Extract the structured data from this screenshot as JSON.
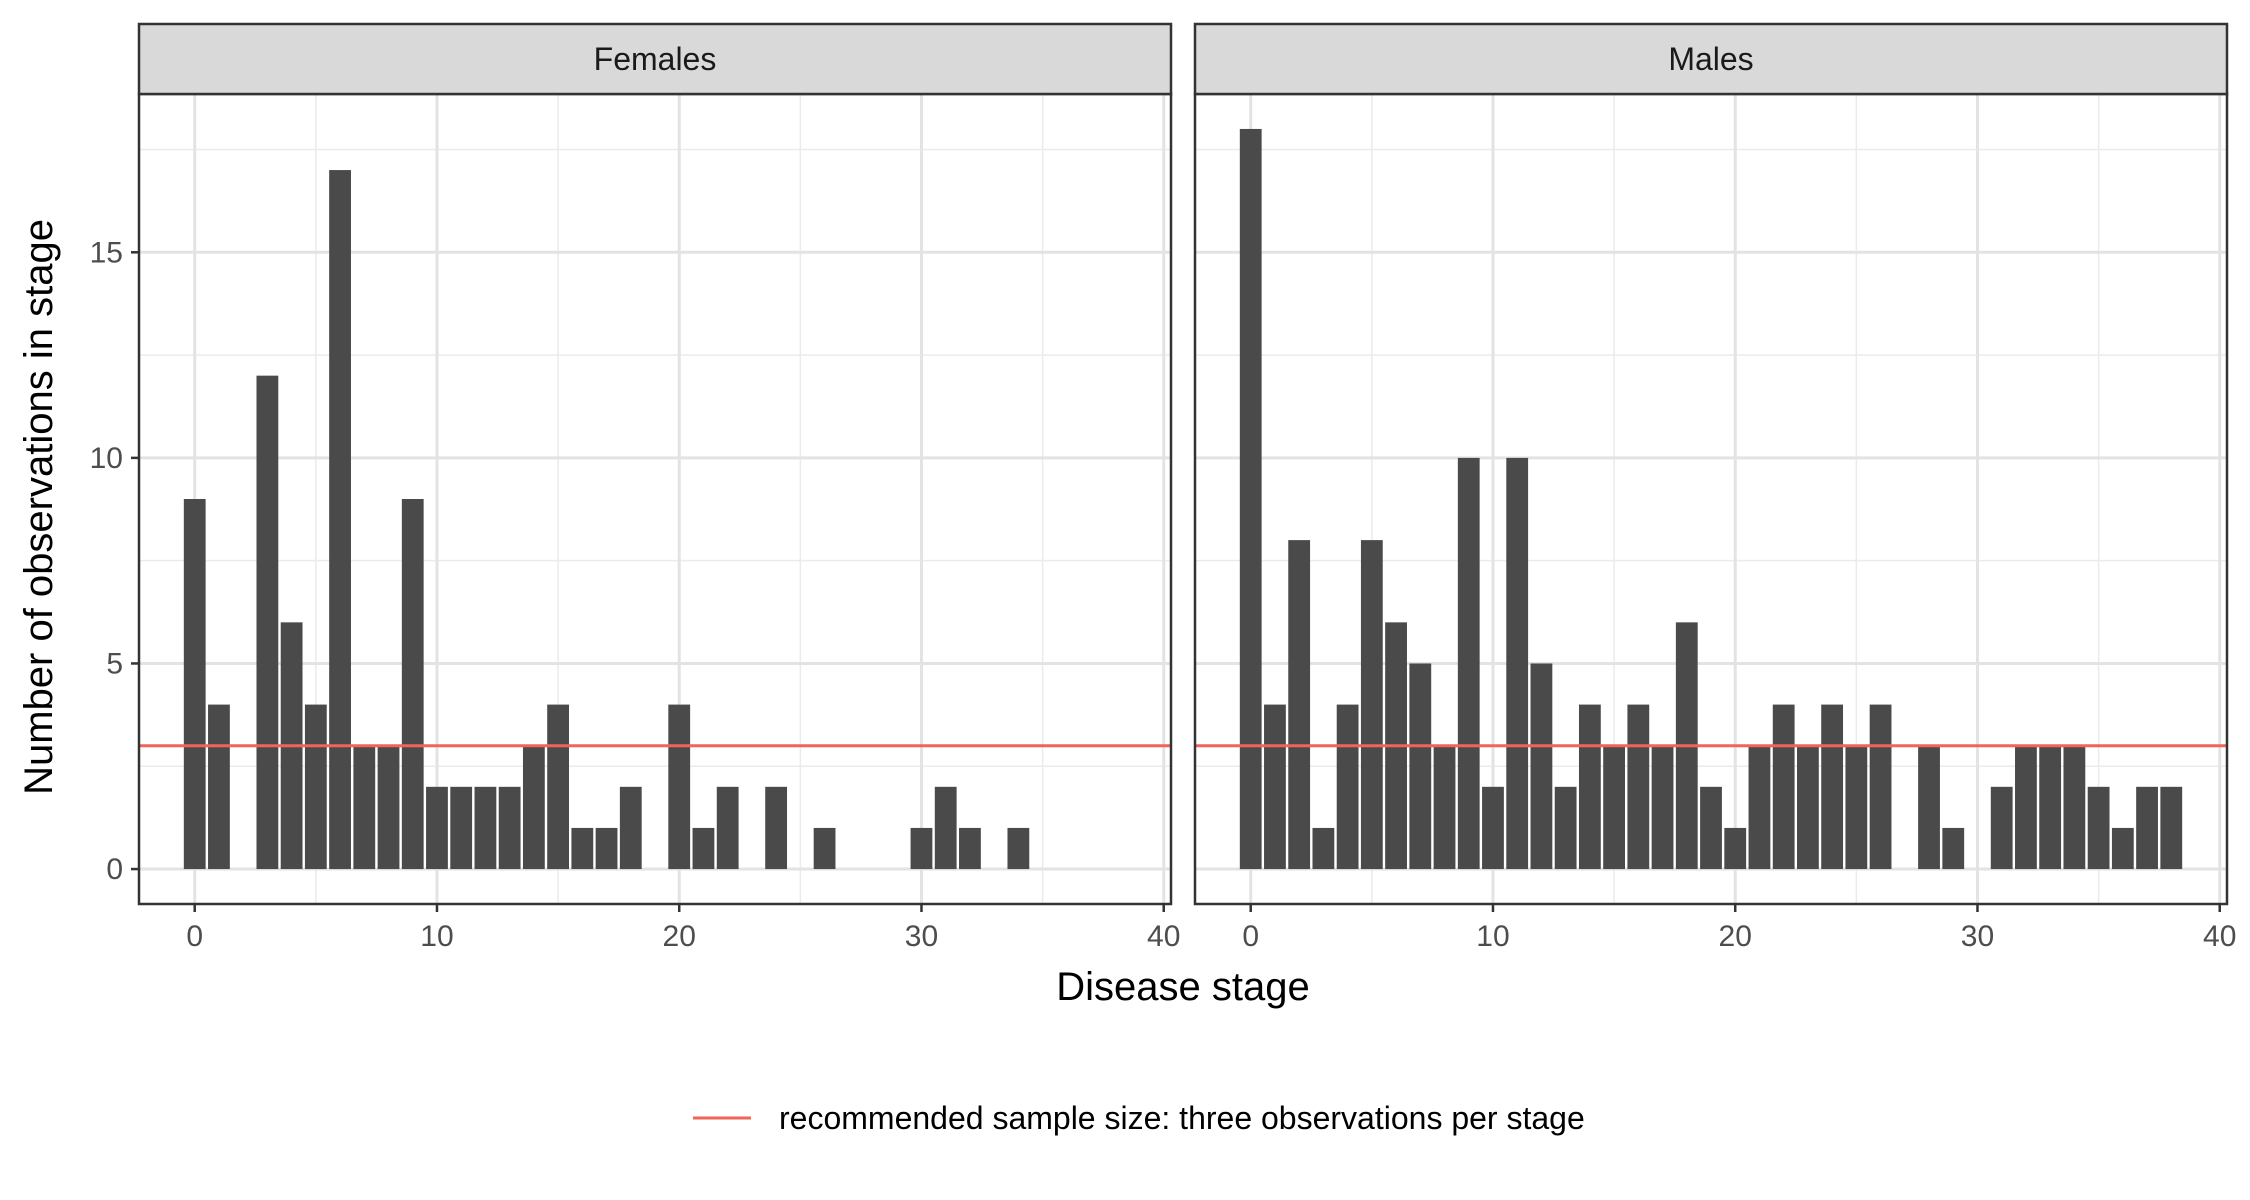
{
  "chart_data": {
    "type": "bar",
    "xlabel": "Disease stage",
    "ylabel": "Number of observations in stage",
    "xlim": [
      -2.3,
      40.3
    ],
    "ylim": [
      -0.85,
      18.85
    ],
    "x_ticks": [
      0,
      10,
      20,
      30,
      40
    ],
    "y_ticks": [
      0,
      5,
      10,
      15
    ],
    "grid": true,
    "bar_color": "#4a4a4a",
    "reference_line": {
      "y": 3,
      "color": "#f0645a",
      "label": "recommended sample size: three observations per stage"
    },
    "legend_position": "bottom",
    "panels": [
      {
        "name": "Females",
        "x": [
          0,
          1,
          3,
          4,
          5,
          6,
          7,
          8,
          9,
          10,
          11,
          12,
          13,
          14,
          15,
          16,
          17,
          18,
          20,
          21,
          22,
          24,
          26,
          30,
          31,
          32,
          34
        ],
        "values": [
          9,
          4,
          12,
          6,
          4,
          17,
          3,
          3,
          9,
          2,
          2,
          2,
          2,
          3,
          4,
          1,
          1,
          2,
          4,
          1,
          2,
          2,
          1,
          1,
          2,
          1,
          1
        ]
      },
      {
        "name": "Males",
        "x": [
          0,
          1,
          2,
          3,
          4,
          5,
          6,
          7,
          8,
          9,
          10,
          11,
          12,
          13,
          14,
          15,
          16,
          17,
          18,
          19,
          20,
          21,
          22,
          23,
          24,
          25,
          26,
          28,
          29,
          31,
          32,
          33,
          34,
          35,
          36,
          37,
          38
        ],
        "values": [
          18,
          4,
          8,
          1,
          4,
          8,
          6,
          5,
          3,
          10,
          2,
          10,
          5,
          2,
          4,
          3,
          4,
          3,
          6,
          2,
          1,
          3,
          4,
          3,
          4,
          3,
          4,
          3,
          1,
          2,
          3,
          3,
          3,
          2,
          1,
          2,
          2
        ]
      }
    ]
  }
}
